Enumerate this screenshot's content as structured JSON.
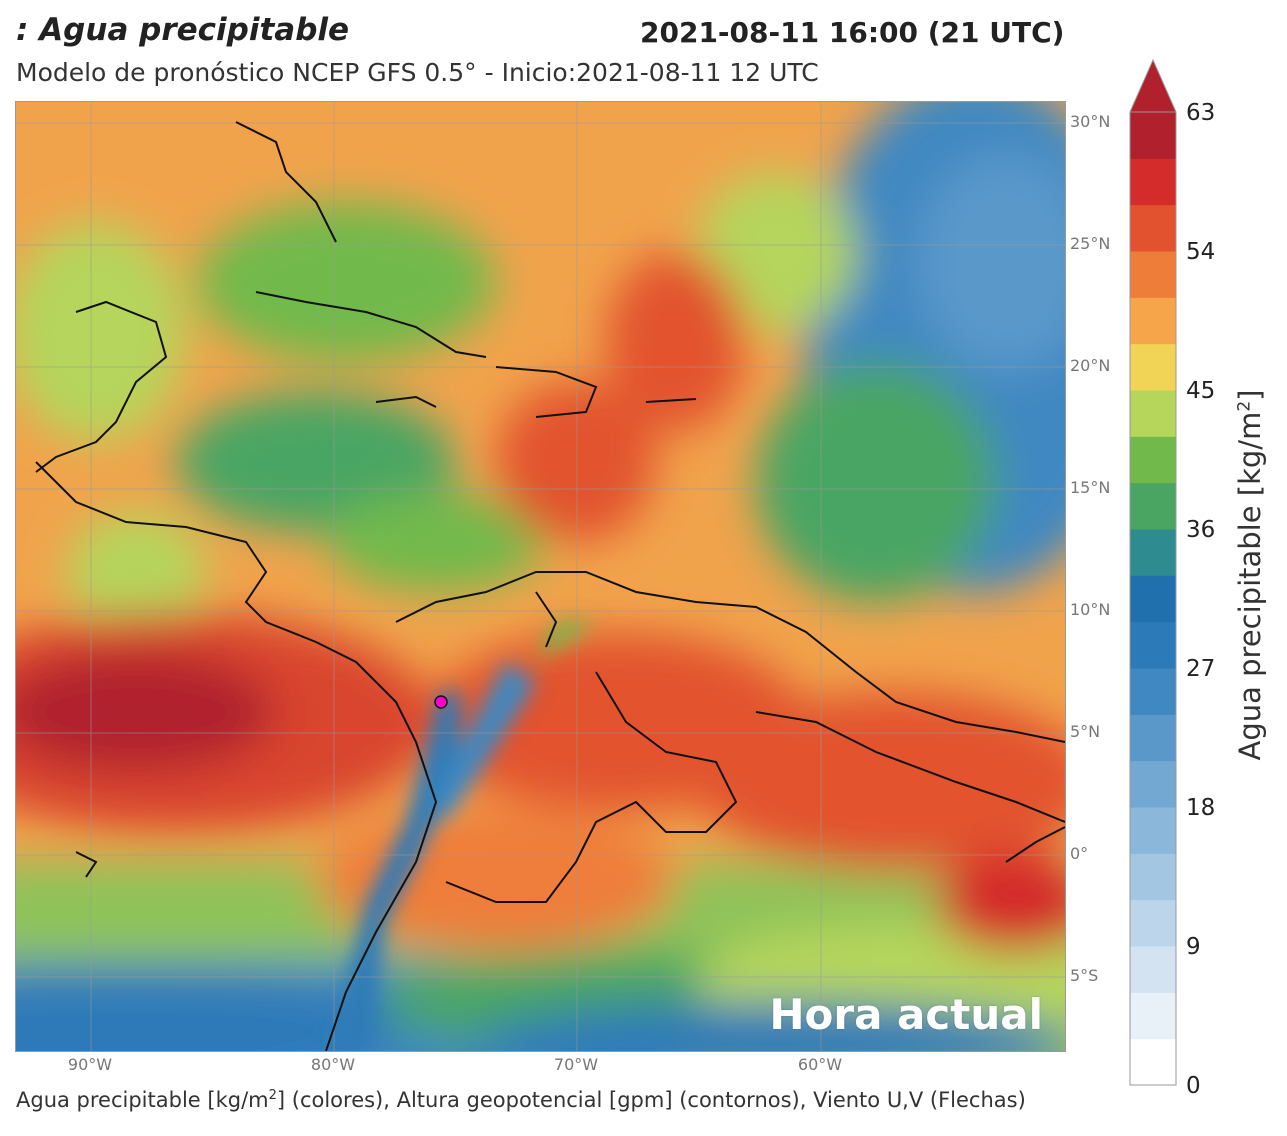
{
  "header": {
    "title": ": Agua precipitable",
    "datetime": "2021-08-11 16:00 (21 UTC)",
    "subtitle": "Modelo de pronóstico NCEP GFS 0.5° - Inicio:2021-08-11 12 UTC"
  },
  "map": {
    "overlay_label": "Hora actual",
    "marker_color": "#ff00cc",
    "lat_labels": [
      "30°N",
      "25°N",
      "20°N",
      "15°N",
      "10°N",
      "5°N",
      "0°",
      "5°S"
    ],
    "lon_labels": [
      "90°W",
      "80°W",
      "70°W",
      "60°W"
    ]
  },
  "colorbar": {
    "title_prefix": "Agua precipitable [kg/m",
    "title_sup": "2",
    "title_suffix": "]",
    "ticks": [
      "63",
      "54",
      "45",
      "36",
      "27",
      "18",
      "9",
      "0"
    ],
    "colors": [
      "#ffffff",
      "#e8f0f8",
      "#d3e3f1",
      "#bcd5ea",
      "#a3c6e2",
      "#8bb7da",
      "#72a8d2",
      "#5a98ca",
      "#3f88c1",
      "#2d7ab8",
      "#2070ae",
      "#2e8b8f",
      "#4aa563",
      "#72b94c",
      "#b5d55b",
      "#f1d355",
      "#f7a54a",
      "#ef7d3a",
      "#e2522f",
      "#d42b2b",
      "#b0202d"
    ]
  },
  "footer": {
    "part1": "Agua precipitable [kg/m",
    "sup": "2",
    "part2": "] (colores), Altura geopotencial [gpm] (contornos), Viento U,V (Flechas)"
  }
}
